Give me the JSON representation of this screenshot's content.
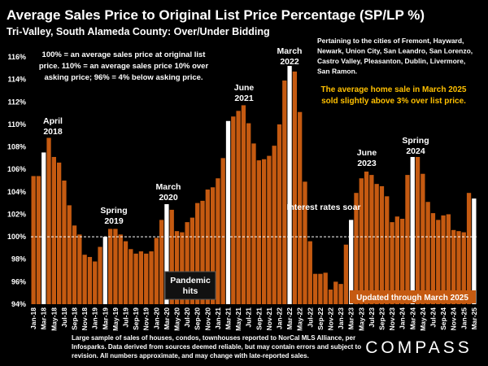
{
  "chart_data": {
    "type": "bar",
    "title": "Average Sales Price to Original List Price Percentage (SP/LP %)",
    "subtitle": "Tri-Valley, South Alameda County:  Over/Under Bidding",
    "categories": [
      "Jan-18",
      null,
      "Mar-18",
      null,
      "May-18",
      null,
      "Jul-18",
      null,
      "Sep-18",
      null,
      "Nov-18",
      null,
      "Jan-19",
      null,
      "Mar-19",
      null,
      "May-19",
      null,
      "Jul-19",
      null,
      "Sep-19",
      null,
      "Nov-19",
      null,
      "Jan-20",
      null,
      "Mar-20",
      null,
      "May-20",
      null,
      "Jul-20",
      null,
      "Sep-20",
      null,
      "Nov-20",
      null,
      "Jan-21",
      null,
      "Mar-21",
      null,
      "May-21",
      null,
      "Jul-21",
      null,
      "Sep-21",
      null,
      "Nov-21",
      null,
      "Jan-22",
      null,
      "Mar-22",
      null,
      "May-22",
      null,
      "Jul-22",
      null,
      "Sep-22",
      null,
      "Nov-22",
      null,
      "Jan-23",
      null,
      "Mar-23",
      null,
      "May-23",
      null,
      "Jul-23",
      null,
      "Sep-23",
      null,
      "Nov-23",
      null,
      "Jan-24",
      null,
      "Mar-24",
      null,
      "May-24",
      null,
      "Jul-24",
      null,
      "Sep-24",
      null,
      "Nov-24",
      null,
      "Jan-25",
      null,
      "Mar-25"
    ],
    "values": [
      105.4,
      105.4,
      107.5,
      108.8,
      107.1,
      106.6,
      105.0,
      102.8,
      101.0,
      100.2,
      98.4,
      98.2,
      97.8,
      99.1,
      100.0,
      100.7,
      100.7,
      100.2,
      99.6,
      98.9,
      98.5,
      98.7,
      98.5,
      98.7,
      99.9,
      101.5,
      102.9,
      102.4,
      100.5,
      100.4,
      101.3,
      101.7,
      103.0,
      103.2,
      104.2,
      104.4,
      105.2,
      107.0,
      110.3,
      110.7,
      111.2,
      111.7,
      110.1,
      108.3,
      106.8,
      106.9,
      107.2,
      108.1,
      110.0,
      113.9,
      115.2,
      114.7,
      111.1,
      104.9,
      99.6,
      96.7,
      96.7,
      96.8,
      95.3,
      96.0,
      95.8,
      99.3,
      101.5,
      103.9,
      105.2,
      105.8,
      105.5,
      104.7,
      104.5,
      103.6,
      101.3,
      101.8,
      101.6,
      105.5,
      107.1,
      107.1,
      105.6,
      103.1,
      102.1,
      101.5,
      101.9,
      102.0,
      100.6,
      100.5,
      100.4,
      103.9,
      103.4
    ],
    "colors": [
      "#c55a11",
      "#c55a11",
      "#ffffff",
      "#c55a11",
      "#c55a11",
      "#c55a11",
      "#c55a11",
      "#c55a11",
      "#c55a11",
      "#c55a11",
      "#c55a11",
      "#c55a11",
      "#c55a11",
      "#c55a11",
      "#ffffff",
      "#c55a11",
      "#c55a11",
      "#c55a11",
      "#c55a11",
      "#c55a11",
      "#c55a11",
      "#c55a11",
      "#c55a11",
      "#c55a11",
      "#c55a11",
      "#c55a11",
      "#ffffff",
      "#c55a11",
      "#c55a11",
      "#c55a11",
      "#c55a11",
      "#c55a11",
      "#c55a11",
      "#c55a11",
      "#c55a11",
      "#c55a11",
      "#c55a11",
      "#c55a11",
      "#ffffff",
      "#c55a11",
      "#c55a11",
      "#c55a11",
      "#c55a11",
      "#c55a11",
      "#c55a11",
      "#c55a11",
      "#c55a11",
      "#c55a11",
      "#c55a11",
      "#c55a11",
      "#ffffff",
      "#c55a11",
      "#c55a11",
      "#c55a11",
      "#c55a11",
      "#c55a11",
      "#c55a11",
      "#c55a11",
      "#c55a11",
      "#c55a11",
      "#c55a11",
      "#c55a11",
      "#ffffff",
      "#c55a11",
      "#c55a11",
      "#c55a11",
      "#c55a11",
      "#c55a11",
      "#c55a11",
      "#c55a11",
      "#c55a11",
      "#c55a11",
      "#c55a11",
      "#c55a11",
      "#ffffff",
      "#c55a11",
      "#c55a11",
      "#c55a11",
      "#c55a11",
      "#c55a11",
      "#c55a11",
      "#c55a11",
      "#c55a11",
      "#c55a11",
      "#c55a11",
      "#c55a11",
      "#ffffff"
    ],
    "ylim": [
      94,
      116
    ],
    "yticks": [
      {
        "value": 94,
        "label": "94%"
      },
      {
        "value": 96,
        "label": "96%"
      },
      {
        "value": 98,
        "label": "98%"
      },
      {
        "value": 100,
        "label": "100%"
      },
      {
        "value": 102,
        "label": "102%"
      },
      {
        "value": 104,
        "label": "104%"
      },
      {
        "value": 106,
        "label": "106%"
      },
      {
        "value": 108,
        "label": "108%"
      },
      {
        "value": 110,
        "label": "110%"
      },
      {
        "value": 112,
        "label": "112%"
      },
      {
        "value": 114,
        "label": "114%"
      },
      {
        "value": 116,
        "label": "116%"
      }
    ],
    "reference_line": 100,
    "annotations": [
      {
        "lines": [
          "April",
          "2018"
        ]
      },
      {
        "lines": [
          "Spring",
          "2019"
        ]
      },
      {
        "lines": [
          "March",
          "2020"
        ]
      },
      {
        "lines": [
          "June",
          "2021"
        ]
      },
      {
        "lines": [
          "March",
          "2022"
        ]
      },
      {
        "lines": [
          "June",
          "2023"
        ]
      },
      {
        "lines": [
          "Spring",
          "2024"
        ]
      },
      {
        "lines": [
          "Interest rates soar"
        ]
      },
      {
        "lines": [
          "Pandemic",
          "hits"
        ]
      }
    ],
    "note_left": [
      "100% = an average sales price at original list",
      "price. 110% = an average sales price 10% over",
      "asking price; 96% = 4% below asking price."
    ],
    "note_right": [
      "Pertaining to the cities of Fremont, Hayward,",
      "Newark, Union City, San Leandro, San Lorenzo,",
      "Castro Valley, Pleasanton, Dublin, Livermore,",
      "San Ramon."
    ],
    "highlight_note": [
      "The average home sale in March 2025",
      "sold slightly above 3% over list price."
    ],
    "updated": "Updated through March 2025",
    "footnote": [
      "Large sample of sales of houses, condos, townhouses reported to NorCal MLS Alliance, per",
      "Infosparks. Data derived from sources deemed reliable, but may contain errors and subject to",
      "revision. All numbers approximate, and may change with late-reported sales."
    ],
    "logo": "COMPASS"
  }
}
